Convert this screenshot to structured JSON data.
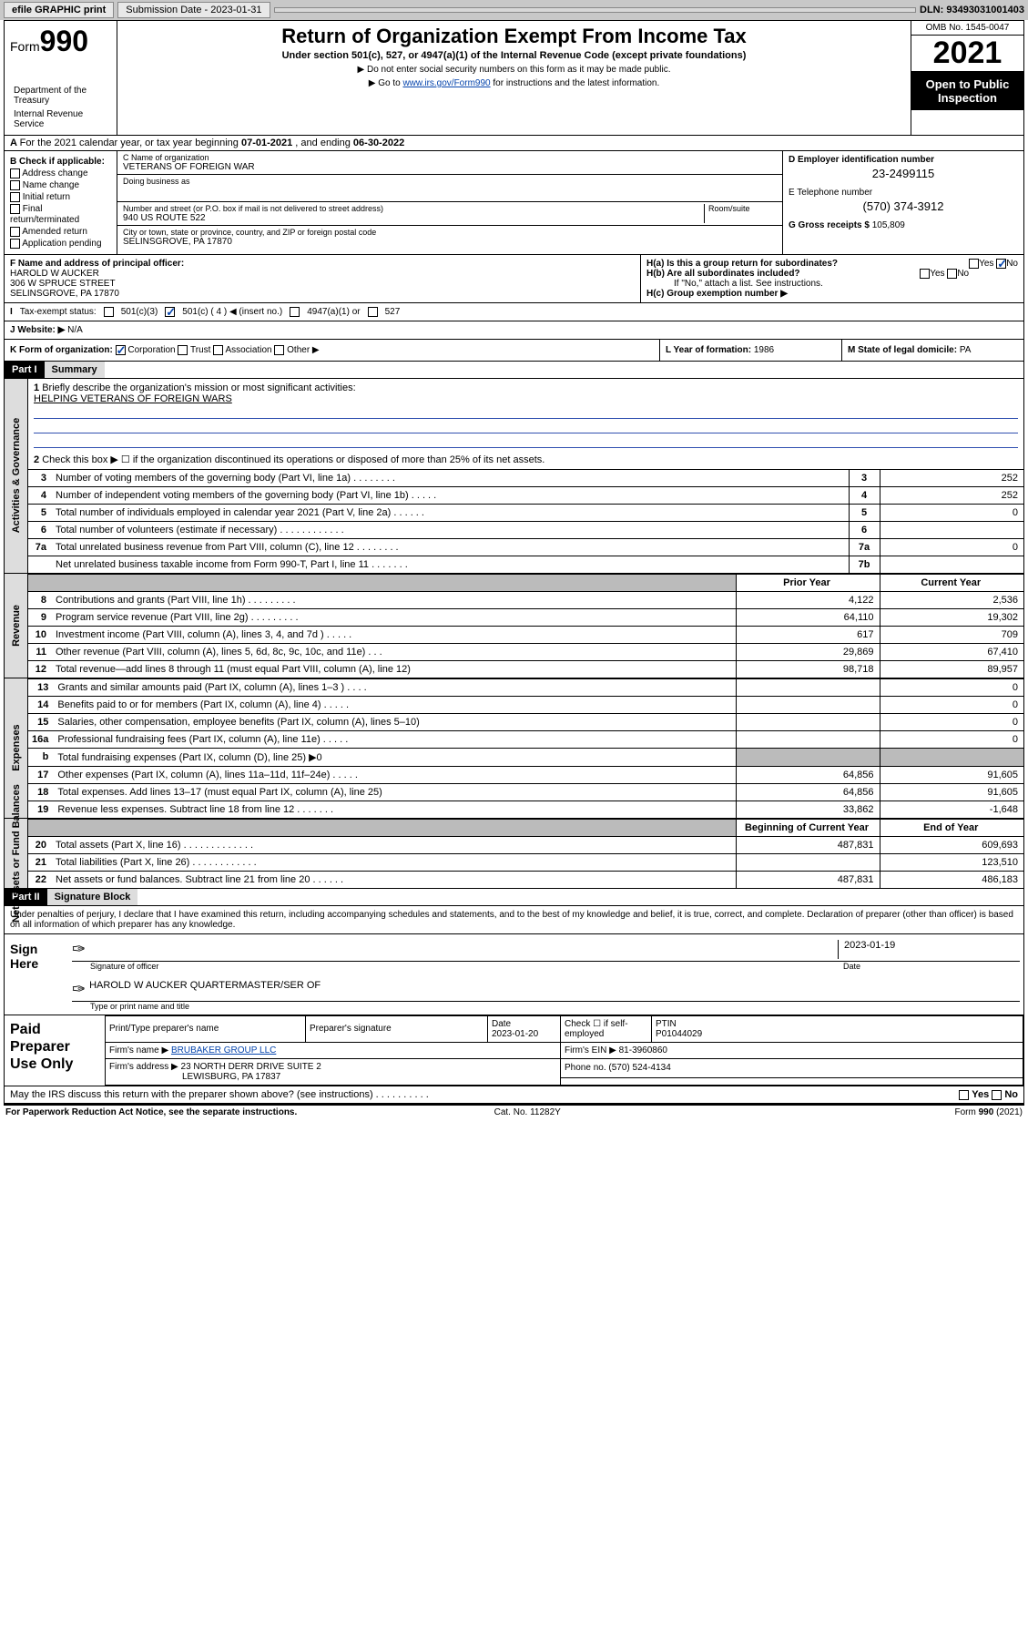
{
  "topbar": {
    "efile": "efile GRAPHIC print",
    "submission": "Submission Date - 2023-01-31",
    "dln": "DLN: 93493031001403"
  },
  "header": {
    "form": "Form",
    "num": "990",
    "title": "Return of Organization Exempt From Income Tax",
    "subtitle": "Under section 501(c), 527, or 4947(a)(1) of the Internal Revenue Code (except private foundations)",
    "note1": "▶ Do not enter social security numbers on this form as it may be made public.",
    "note2": "▶ Go to ",
    "link": "www.irs.gov/Form990",
    "note3": " for instructions and the latest information.",
    "omb": "OMB No. 1545-0047",
    "year": "2021",
    "otp": "Open to Public Inspection",
    "dept": "Department of the Treasury",
    "irs": "Internal Revenue Service"
  },
  "a": {
    "text": "For the 2021 calendar year, or tax year beginning ",
    "begin": "07-01-2021",
    "mid": " , and ending ",
    "end": "06-30-2022"
  },
  "b": {
    "label": "B Check if applicable:",
    "items": [
      "Address change",
      "Name change",
      "Initial return",
      "Final return/terminated",
      "Amended return",
      "Application pending"
    ]
  },
  "c": {
    "nameLabel": "C Name of organization",
    "name": "VETERANS OF FOREIGN WAR",
    "dbaLabel": "Doing business as",
    "dba": "",
    "addrLabel": "Number and street (or P.O. box if mail is not delivered to street address)",
    "room": "Room/suite",
    "addr": "940 US ROUTE 522",
    "cityLabel": "City or town, state or province, country, and ZIP or foreign postal code",
    "city": "SELINSGROVE, PA  17870"
  },
  "d": {
    "label": "D Employer identification number",
    "val": "23-2499115"
  },
  "e": {
    "label": "E Telephone number",
    "val": "(570) 374-3912"
  },
  "g": {
    "label": "G Gross receipts $",
    "val": "105,809"
  },
  "f": {
    "label": "F  Name and address of principal officer:",
    "name": "HAROLD W AUCKER",
    "addr1": "306 W SPRUCE STREET",
    "addr2": "SELINSGROVE, PA  17870"
  },
  "h": {
    "a": "H(a)  Is this a group return for subordinates?",
    "b": "H(b)  Are all subordinates included?",
    "note": "If \"No,\" attach a list. See instructions.",
    "c": "H(c)  Group exemption number ▶"
  },
  "i": {
    "label": "Tax-exempt status:",
    "o1": "501(c)(3)",
    "o2": "501(c) ( 4 ) ◀ (insert no.)",
    "o3": "4947(a)(1) or",
    "o4": "527"
  },
  "j": {
    "label": "J Website: ▶",
    "val": "N/A"
  },
  "k": {
    "label": "K Form of organization:",
    "o1": "Corporation",
    "o2": "Trust",
    "o3": "Association",
    "o4": "Other ▶"
  },
  "l": {
    "label": "L Year of formation:",
    "val": "1986"
  },
  "m": {
    "label": "M State of legal domicile:",
    "val": "PA"
  },
  "part1": {
    "hdr": "Part I",
    "title": "Summary",
    "l1": "Briefly describe the organization's mission or most significant activities:",
    "mission": "HELPING VETERANS OF FOREIGN WARS",
    "l2": "Check this box ▶ ☐  if the organization discontinued its operations or disposed of more than 25% of its net assets.",
    "rows": [
      {
        "n": "3",
        "d": "Number of voting members of the governing body (Part VI, line 1a)   .    .    .    .    .    .    .    .",
        "b": "3",
        "v": "252"
      },
      {
        "n": "4",
        "d": "Number of independent voting members of the governing body (Part VI, line 1b)   .    .    .    .    .",
        "b": "4",
        "v": "252"
      },
      {
        "n": "5",
        "d": "Total number of individuals employed in calendar year 2021 (Part V, line 2a)   .    .    .    .    .    .",
        "b": "5",
        "v": "0"
      },
      {
        "n": "6",
        "d": "Total number of volunteers (estimate if necessary)   .    .    .    .    .    .    .    .    .    .    .    .",
        "b": "6",
        "v": ""
      },
      {
        "n": "7a",
        "d": "Total unrelated business revenue from Part VIII, column (C), line 12   .    .    .    .    .    .    .    .",
        "b": "7a",
        "v": "0"
      },
      {
        "n": "",
        "d": "Net unrelated business taxable income from Form 990-T, Part I, line 11   .    .    .    .    .    .    .",
        "b": "7b",
        "v": ""
      }
    ],
    "py": "Prior Year",
    "cy": "Current Year",
    "rev": [
      {
        "n": "8",
        "d": "Contributions and grants (Part VIII, line 1h)   .    .    .    .    .    .    .    .    .",
        "p": "4,122",
        "c": "2,536"
      },
      {
        "n": "9",
        "d": "Program service revenue (Part VIII, line 2g)   .    .    .    .    .    .    .    .    .",
        "p": "64,110",
        "c": "19,302"
      },
      {
        "n": "10",
        "d": "Investment income (Part VIII, column (A), lines 3, 4, and 7d )   .    .    .    .    .",
        "p": "617",
        "c": "709"
      },
      {
        "n": "11",
        "d": "Other revenue (Part VIII, column (A), lines 5, 6d, 8c, 9c, 10c, and 11e)   .    .    .",
        "p": "29,869",
        "c": "67,410"
      },
      {
        "n": "12",
        "d": "Total revenue—add lines 8 through 11 (must equal Part VIII, column (A), line 12)",
        "p": "98,718",
        "c": "89,957"
      }
    ],
    "exp": [
      {
        "n": "13",
        "d": "Grants and similar amounts paid (Part IX, column (A), lines 1–3 )   .    .    .    .",
        "p": "",
        "c": "0"
      },
      {
        "n": "14",
        "d": "Benefits paid to or for members (Part IX, column (A), line 4)   .    .    .    .    .",
        "p": "",
        "c": "0"
      },
      {
        "n": "15",
        "d": "Salaries, other compensation, employee benefits (Part IX, column (A), lines 5–10)",
        "p": "",
        "c": "0"
      },
      {
        "n": "16a",
        "d": "Professional fundraising fees (Part IX, column (A), line 11e)   .    .    .    .    .",
        "p": "",
        "c": "0"
      },
      {
        "n": "b",
        "d": "Total fundraising expenses (Part IX, column (D), line 25) ▶0",
        "shade": true
      },
      {
        "n": "17",
        "d": "Other expenses (Part IX, column (A), lines 11a–11d, 11f–24e)   .    .    .    .    .",
        "p": "64,856",
        "c": "91,605"
      },
      {
        "n": "18",
        "d": "Total expenses. Add lines 13–17 (must equal Part IX, column (A), line 25)",
        "p": "64,856",
        "c": "91,605"
      },
      {
        "n": "19",
        "d": "Revenue less expenses. Subtract line 18 from line 12   .    .    .    .    .    .    .",
        "p": "33,862",
        "c": "-1,648"
      }
    ],
    "boy": "Beginning of Current Year",
    "eoy": "End of Year",
    "net": [
      {
        "n": "20",
        "d": "Total assets (Part X, line 16)   .    .    .    .    .    .    .    .    .    .    .    .    .",
        "p": "487,831",
        "c": "609,693"
      },
      {
        "n": "21",
        "d": "Total liabilities (Part X, line 26)   .    .    .    .    .    .    .    .    .    .    .    .",
        "p": "",
        "c": "123,510"
      },
      {
        "n": "22",
        "d": "Net assets or fund balances. Subtract line 21 from line 20   .    .    .    .    .    .",
        "p": "487,831",
        "c": "486,183"
      }
    ]
  },
  "part2": {
    "hdr": "Part II",
    "title": "Signature Block",
    "decl": "Under penalties of perjury, I declare that I have examined this return, including accompanying schedules and statements, and to the best of my knowledge and belief, it is true, correct, and complete. Declaration of preparer (other than officer) is based on all information of which preparer has any knowledge."
  },
  "sign": {
    "label": "Sign Here",
    "sigoff": "Signature of officer",
    "date": "2023-01-19",
    "dateLabel": "Date",
    "name": "HAROLD W AUCKER  QUARTERMASTER/SER OF",
    "nameLabel": "Type or print name and title"
  },
  "prep": {
    "label": "Paid Preparer Use Only",
    "h1": "Print/Type preparer's name",
    "h2": "Preparer's signature",
    "h3": "Date",
    "h3v": "2023-01-20",
    "h4": "Check ☐ if self-employed",
    "h5": "PTIN",
    "h5v": "P01044029",
    "firm": "Firm's name    ▶",
    "firmv": "BRUBAKER GROUP LLC",
    "ein": "Firm's EIN ▶",
    "einv": "81-3960860",
    "addr": "Firm's address ▶",
    "addrv": "23 NORTH DERR DRIVE SUITE 2",
    "city": "LEWISBURG, PA  17837",
    "phone": "Phone no.",
    "phonev": "(570) 524-4134"
  },
  "may": {
    "q": "May the IRS discuss this return with the preparer shown above? (see instructions)   .    .    .    .    .    .    .    .    .    .",
    "yes": "Yes",
    "no": "No"
  },
  "foot": {
    "l": "For Paperwork Reduction Act Notice, see the separate instructions.",
    "m": "Cat. No. 11282Y",
    "r": "Form 990 (2021)"
  }
}
